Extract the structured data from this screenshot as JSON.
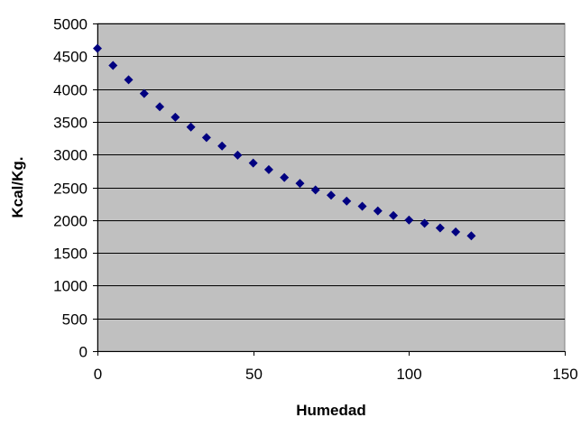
{
  "chart_data": {
    "type": "scatter",
    "title": "",
    "xlabel": "Humedad",
    "ylabel": "Kcal/Kg.",
    "xlim": [
      0,
      150
    ],
    "ylim": [
      0,
      5000
    ],
    "xticks": [
      0,
      50,
      100,
      150
    ],
    "yticks": [
      0,
      500,
      1000,
      1500,
      2000,
      2500,
      3000,
      3500,
      4000,
      4500,
      5000
    ],
    "grid": "horizontal",
    "legend": "none",
    "colors": {
      "plot_background": "#c0c0c0",
      "marker": "#000080",
      "gridline": "#000000"
    },
    "series": [
      {
        "marker": "diamond",
        "x": [
          0,
          5,
          10,
          15,
          20,
          25,
          30,
          35,
          40,
          45,
          50,
          55,
          60,
          65,
          70,
          75,
          80,
          85,
          90,
          95,
          100,
          105,
          110,
          115,
          120
        ],
        "y": [
          4620,
          4360,
          4140,
          3930,
          3730,
          3570,
          3420,
          3260,
          3130,
          2990,
          2870,
          2770,
          2650,
          2560,
          2460,
          2380,
          2290,
          2210,
          2140,
          2070,
          2000,
          1950,
          1880,
          1820,
          1760
        ]
      }
    ]
  }
}
